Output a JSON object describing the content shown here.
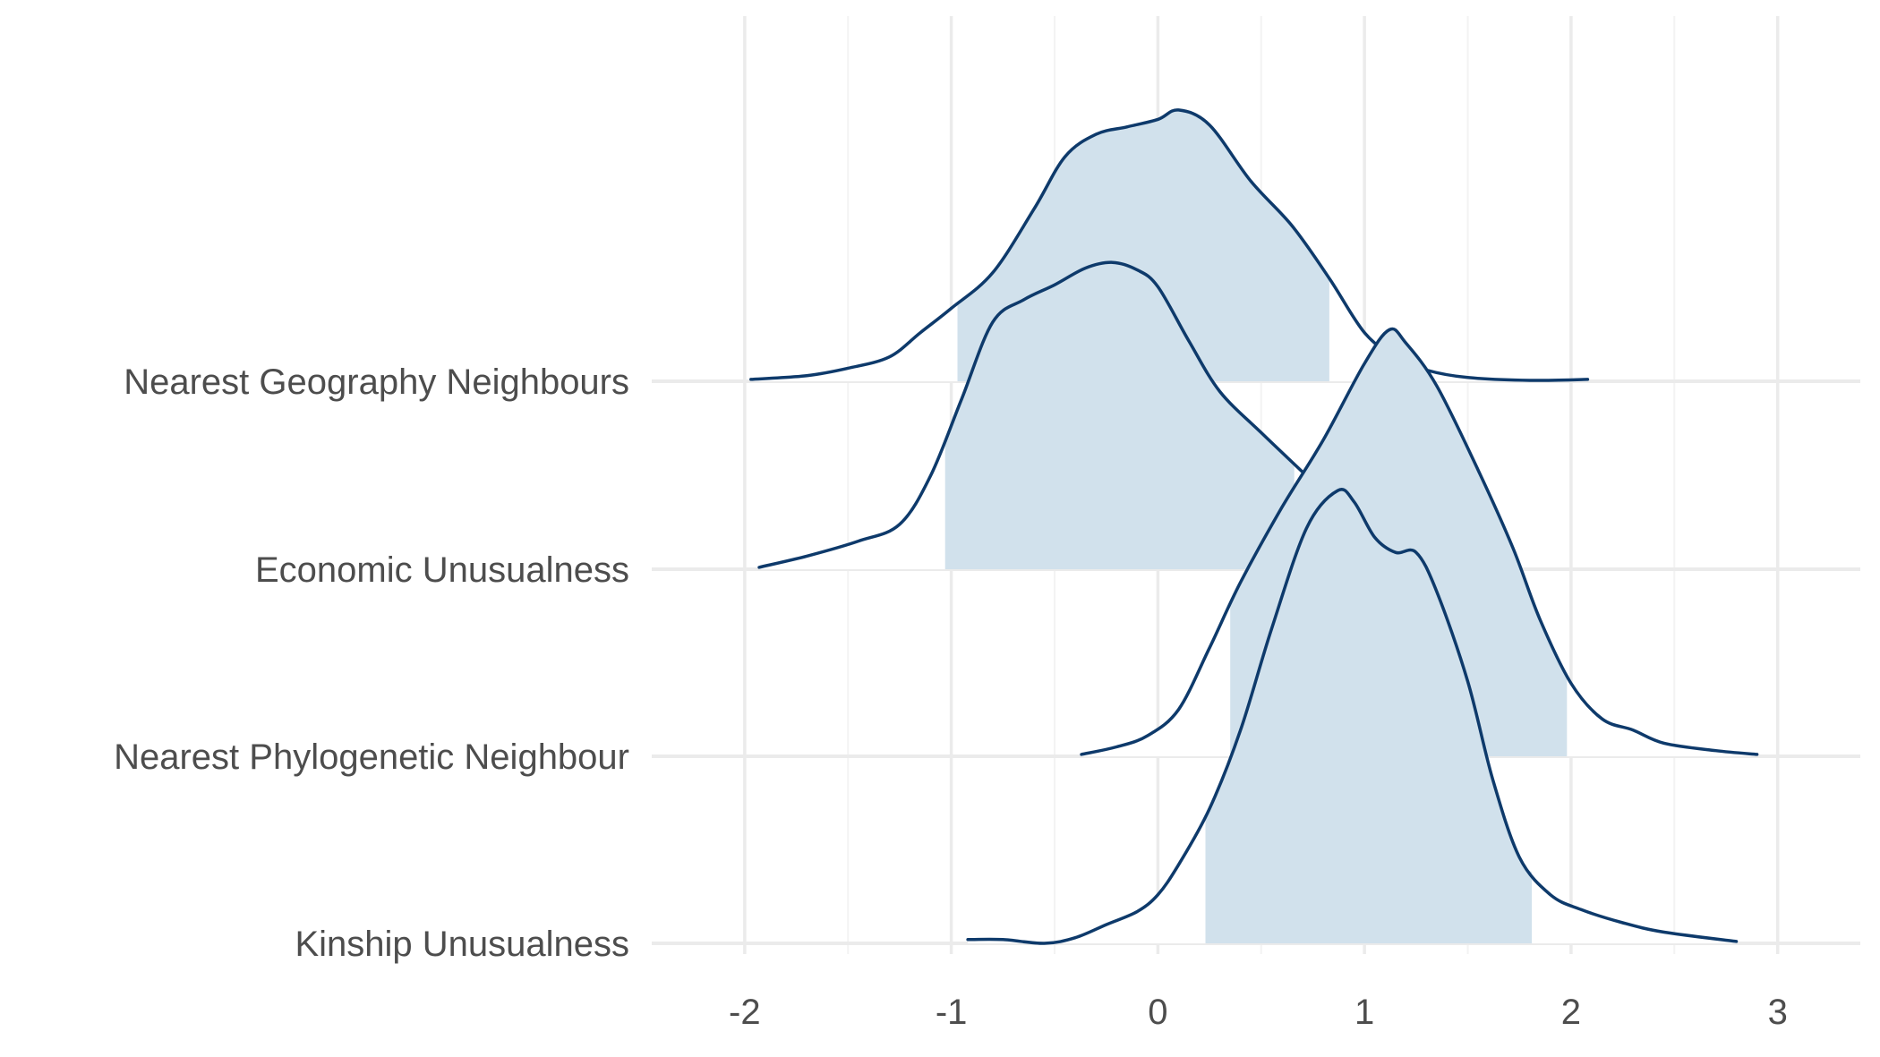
{
  "chart_data": {
    "type": "ridgeline",
    "title": "",
    "xlabel": "",
    "ylabel": "",
    "xlim": [
      -2.45,
      3.4
    ],
    "x_ticks": [
      "-2",
      "-1",
      "0",
      "1",
      "2",
      "3"
    ],
    "grid": "on",
    "legend": "none",
    "colors": {
      "line": "#0e3a6b",
      "fill": "#d1e1ec",
      "grid_major": "#ebebeb",
      "grid_minor": "#f3f3f3",
      "text": "#4d4d4d"
    },
    "ridges": [
      {
        "label": "Nearest Geography Neighbours",
        "shaded_interval": [
          -0.97,
          0.83
        ],
        "density_x": [
          -1.97,
          -1.7,
          -1.5,
          -1.3,
          -1.15,
          -1.0,
          -0.8,
          -0.6,
          -0.45,
          -0.3,
          -0.15,
          0.0,
          0.1,
          0.25,
          0.45,
          0.65,
          0.83,
          1.0,
          1.15,
          1.3,
          1.5,
          1.8,
          2.08
        ],
        "density_y": [
          0.01,
          0.03,
          0.07,
          0.13,
          0.26,
          0.39,
          0.58,
          0.92,
          1.2,
          1.32,
          1.36,
          1.4,
          1.45,
          1.37,
          1.07,
          0.83,
          0.55,
          0.26,
          0.13,
          0.06,
          0.02,
          0.005,
          0.01
        ]
      },
      {
        "label": "Economic Unusualness",
        "shaded_interval": [
          -1.03,
          0.66
        ],
        "density_x": [
          -1.93,
          -1.7,
          -1.45,
          -1.25,
          -1.1,
          -0.95,
          -0.8,
          -0.65,
          -0.5,
          -0.35,
          -0.22,
          -0.1,
          0.0,
          0.15,
          0.3,
          0.5,
          0.7,
          0.83
        ],
        "density_y": [
          0.01,
          0.07,
          0.15,
          0.24,
          0.5,
          0.91,
          1.32,
          1.44,
          1.52,
          1.61,
          1.64,
          1.6,
          1.51,
          1.22,
          0.95,
          0.73,
          0.52,
          0.38
        ]
      },
      {
        "label": "Nearest Phylogenetic Neighbour",
        "shaded_interval": [
          0.35,
          1.98
        ],
        "density_x": [
          -0.37,
          -0.2,
          -0.05,
          0.1,
          0.25,
          0.4,
          0.6,
          0.8,
          1.0,
          1.12,
          1.2,
          1.35,
          1.55,
          1.72,
          1.85,
          2.0,
          2.15,
          2.3,
          2.45,
          2.7,
          2.9
        ],
        "density_y": [
          0.01,
          0.05,
          0.11,
          0.25,
          0.58,
          0.93,
          1.33,
          1.69,
          2.1,
          2.28,
          2.21,
          1.98,
          1.53,
          1.11,
          0.73,
          0.39,
          0.2,
          0.14,
          0.07,
          0.03,
          0.01
        ]
      },
      {
        "label": "Kinship Unusualness",
        "shaded_interval": [
          0.23,
          1.81
        ],
        "density_x": [
          -0.92,
          -0.75,
          -0.55,
          -0.4,
          -0.25,
          -0.1,
          0.0,
          0.1,
          0.25,
          0.4,
          0.55,
          0.72,
          0.87,
          0.95,
          1.05,
          1.15,
          1.25,
          1.35,
          1.5,
          1.62,
          1.75,
          1.9,
          2.05,
          2.25,
          2.45,
          2.8
        ],
        "density_y": [
          0.02,
          0.02,
          0.0,
          0.03,
          0.1,
          0.17,
          0.26,
          0.42,
          0.72,
          1.14,
          1.68,
          2.22,
          2.42,
          2.36,
          2.17,
          2.09,
          2.09,
          1.88,
          1.4,
          0.88,
          0.46,
          0.26,
          0.18,
          0.11,
          0.06,
          0.01
        ]
      }
    ]
  }
}
